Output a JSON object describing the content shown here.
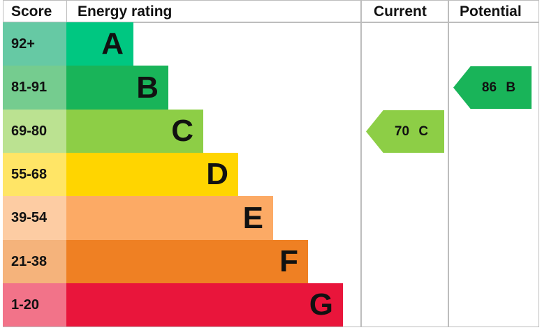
{
  "chart_data": {
    "type": "table",
    "headers": {
      "score": "Score",
      "rating": "Energy rating",
      "current": "Current",
      "potential": "Potential"
    },
    "bands": [
      {
        "letter": "A",
        "range": "92+",
        "color": "#00c781",
        "score_color": "#66c9a4"
      },
      {
        "letter": "B",
        "range": "81-91",
        "color": "#19b459",
        "score_color": "#75cc8f"
      },
      {
        "letter": "C",
        "range": "69-80",
        "color": "#8dce46",
        "score_color": "#bbe291"
      },
      {
        "letter": "D",
        "range": "55-68",
        "color": "#ffd500",
        "score_color": "#ffe566"
      },
      {
        "letter": "E",
        "range": "39-54",
        "color": "#fcaa65",
        "score_color": "#fdcca3"
      },
      {
        "letter": "F",
        "range": "21-38",
        "color": "#ef8023",
        "score_color": "#f5b37b"
      },
      {
        "letter": "G",
        "range": "1-20",
        "color": "#e9153b",
        "score_color": "#f27389"
      }
    ],
    "current": {
      "value": 70,
      "band": "C",
      "label": "70  C"
    },
    "potential": {
      "value": 86,
      "band": "B",
      "label": "86  B"
    }
  }
}
